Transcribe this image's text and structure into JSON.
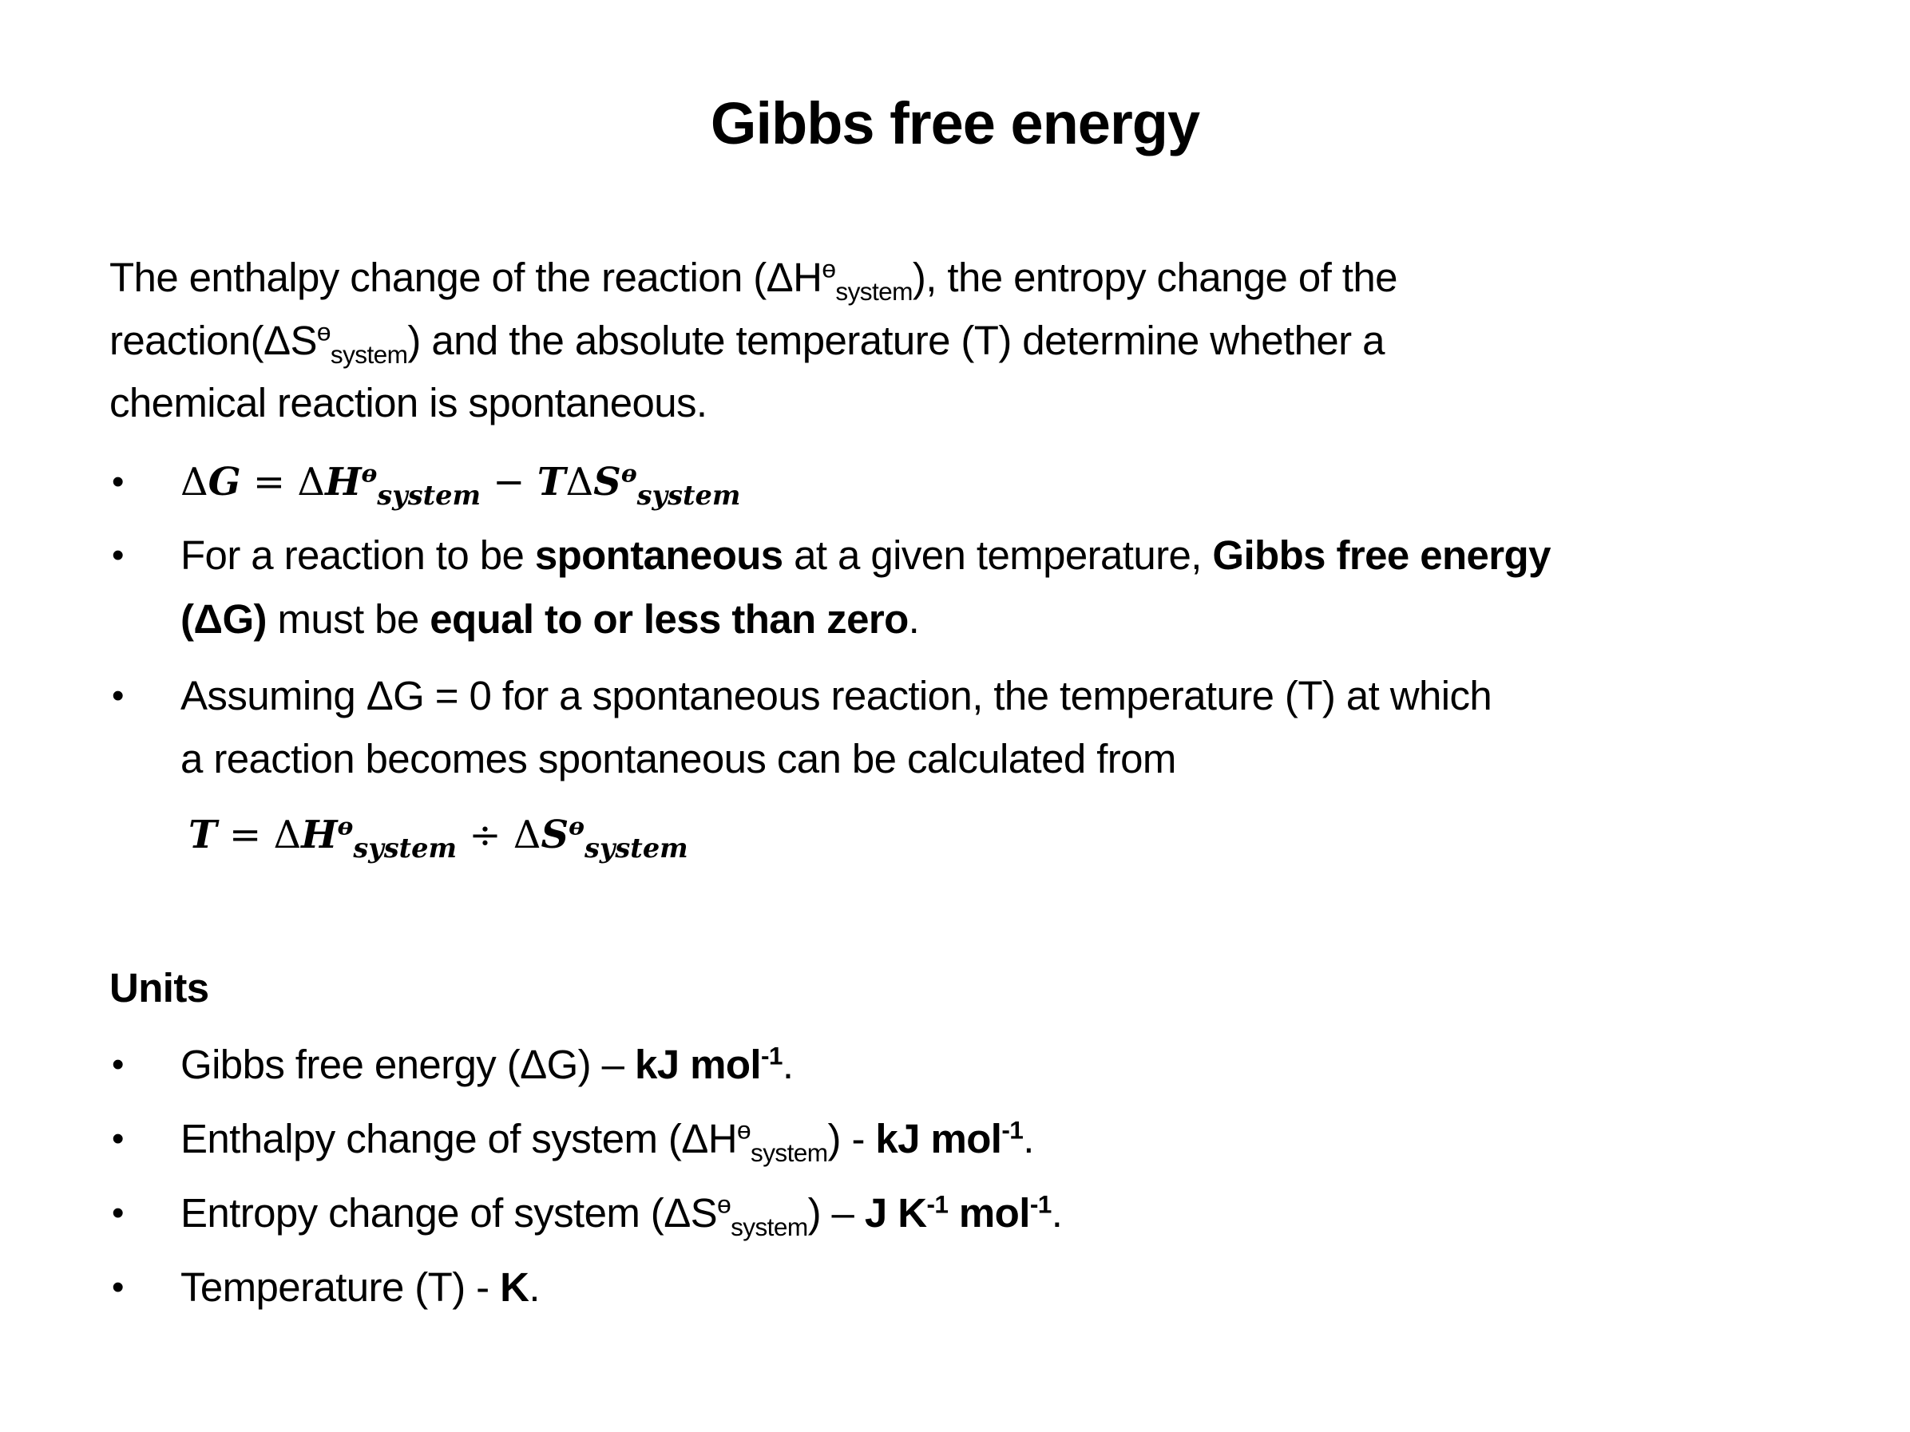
{
  "title": "Gibbs free energy",
  "intro": {
    "l1a": "The enthalpy change of the reaction (ΔH",
    "theta": "ө",
    "sub": "system",
    "l1b": "), the entropy change of the",
    "l2a": "reaction(ΔS",
    "l2b": ") and the absolute temperature (T) determine whether a",
    "l3": "chemical reaction is spontaneous."
  },
  "formula1": {
    "a": "Δ",
    "b": "G",
    "c": " = ",
    "d": "Δ",
    "e": "H",
    "theta": "ө",
    "sub": "system",
    "f": " − ",
    "g": "T",
    "h": "Δ",
    "i": "S"
  },
  "bullet2": {
    "a": "For a reaction to be ",
    "b": "spontaneous",
    "c": " at a given temperature, ",
    "d": "Gibbs free energy",
    "e": "(ΔG)",
    "f": " must be ",
    "g": "equal to or less than zero",
    "h": "."
  },
  "bullet3": {
    "l1": "Assuming ΔG = 0 for a spontaneous reaction, the temperature (T) at which",
    "l2": "a reaction becomes spontaneous can be calculated from"
  },
  "formula2": {
    "a": "T",
    "b": " = ",
    "c": "Δ",
    "d": "H",
    "theta": "ө",
    "sub": "system",
    "e": " ÷ ",
    "f": "Δ",
    "g": "S"
  },
  "units": {
    "heading": "Units",
    "bullet": "•",
    "items": [
      {
        "a": "Gibbs free energy (ΔG) – ",
        "b": "kJ mol",
        "sup": "-1",
        "c": "."
      },
      {
        "a": "Enthalpy change of system (ΔH",
        "theta": "ө",
        "sub": "system",
        "a2": ") - ",
        "b": "kJ mol",
        "sup": "-1",
        "c": "."
      },
      {
        "a": "Entropy change of system (ΔS",
        "theta": "ө",
        "sub": "system",
        "a2": ") – ",
        "b": "J K",
        "sup": "-1",
        "b2": " mol",
        "sup2": "-1",
        "c": "."
      },
      {
        "a": "Temperature (T) - ",
        "b": "K",
        "c": "."
      }
    ]
  }
}
